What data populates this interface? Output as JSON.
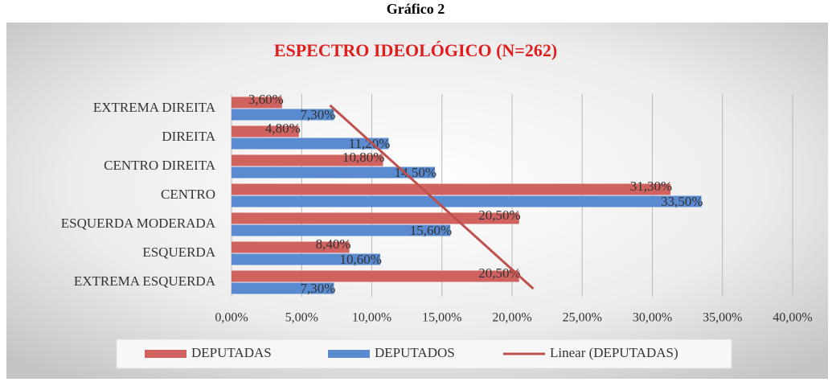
{
  "chart_data": {
    "type": "hbar",
    "header": "Gráfico 2",
    "title": "ESPECTRO IDEOLÓGICO (N=262)",
    "categories": [
      "EXTREMA DIREITA",
      "DIREITA",
      "CENTRO DIREITA",
      "CENTRO",
      "ESQUERDA MODERADA",
      "ESQUERDA",
      "EXTREMA ESQUERDA"
    ],
    "series": [
      {
        "name": "DEPUTADAS",
        "color": "#d0625f",
        "values": [
          3.6,
          4.8,
          10.8,
          31.3,
          20.5,
          8.4,
          20.5
        ],
        "value_labels": [
          "3,60%",
          "4,80%",
          "10,80%",
          "31,30%",
          "20,50%",
          "8,40%",
          "20,50%"
        ]
      },
      {
        "name": "DEPUTADOS",
        "color": "#5a8ad0",
        "values": [
          7.3,
          11.2,
          14.5,
          33.5,
          15.6,
          10.6,
          7.3
        ],
        "value_labels": [
          "7,30%",
          "11,20%",
          "14,50%",
          "33,50%",
          "15,60%",
          "10,60%",
          "7,30%"
        ]
      }
    ],
    "trendline": {
      "name": "Linear (DEPUTADAS)",
      "series": 0,
      "color": "#c0504d"
    },
    "xlim": [
      0,
      40
    ],
    "xticks": [
      {
        "value": 0,
        "label": "0,00%"
      },
      {
        "value": 5,
        "label": "5,00%"
      },
      {
        "value": 10,
        "label": "10,00%"
      },
      {
        "value": 15,
        "label": "15,00%"
      },
      {
        "value": 20,
        "label": "20,00%"
      },
      {
        "value": 25,
        "label": "25,00%"
      },
      {
        "value": 30,
        "label": "30,00%"
      },
      {
        "value": 35,
        "label": "35,00%"
      },
      {
        "value": 40,
        "label": "40,00%"
      }
    ],
    "grid": true,
    "legend": "bottom"
  }
}
